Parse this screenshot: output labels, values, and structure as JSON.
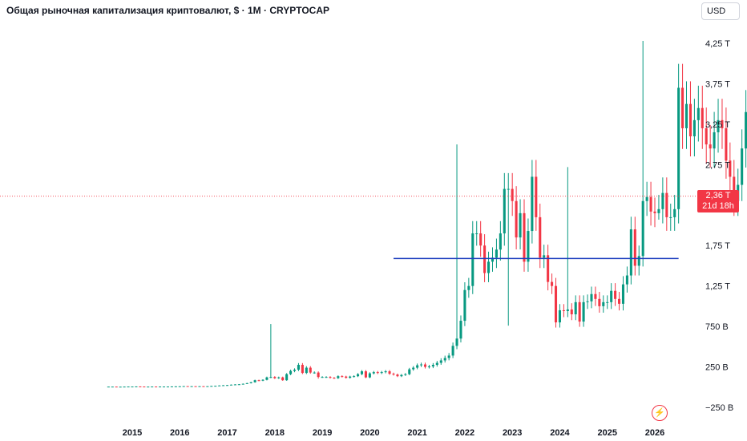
{
  "header": {
    "title": "Общая рыночная капитализация криптовалют, $ · 1M · CRYPTOCAP",
    "currency": "USD"
  },
  "price_label": {
    "value": "2,36 T",
    "countdown": "21d 18h"
  },
  "colors": {
    "up": "#089981",
    "down": "#f23645",
    "hline": "#1e3fbf",
    "grid": "#f0f3fa"
  },
  "icons": {
    "alerts": "lightning-icon"
  },
  "chart_data": {
    "type": "candlestick",
    "title": "Общая рыночная капитализация криптовалют, $ · 1M · CRYPTOCAP",
    "y_ticks": [
      {
        "value": 4250,
        "label": "4,25 T"
      },
      {
        "value": 3750,
        "label": "3,75 T"
      },
      {
        "value": 3250,
        "label": "3,25 T"
      },
      {
        "value": 2750,
        "label": "2,75 T"
      },
      {
        "value": 1750,
        "label": "1,75 T"
      },
      {
        "value": 1250,
        "label": "1,25 T"
      },
      {
        "value": 750,
        "label": "750 B"
      },
      {
        "value": 250,
        "label": "250 B"
      },
      {
        "value": -250,
        "label": "−250 B"
      }
    ],
    "x_ticks": [
      {
        "t": 2015,
        "label": "2015"
      },
      {
        "t": 2016,
        "label": "2016"
      },
      {
        "t": 2017,
        "label": "2017"
      },
      {
        "t": 2018,
        "label": "2018"
      },
      {
        "t": 2019,
        "label": "2019"
      },
      {
        "t": 2020,
        "label": "2020"
      },
      {
        "t": 2021,
        "label": "2021"
      },
      {
        "t": 2022,
        "label": "2022"
      },
      {
        "t": 2023,
        "label": "2023"
      },
      {
        "t": 2024,
        "label": "2024"
      },
      {
        "t": 2025,
        "label": "2025"
      },
      {
        "t": 2026,
        "label": "2026"
      }
    ],
    "y_range_billions": [
      -300,
      4600
    ],
    "x_range_years": [
      2013.0,
      2026.7
    ],
    "current_price_billions": 2360,
    "horizontal_line": {
      "value_billions": 1590,
      "from": 2020.5,
      "to": 2026.5
    },
    "close_billions": [
      6,
      6,
      5,
      5,
      6,
      7,
      7,
      8,
      7,
      6,
      6,
      7,
      6,
      7,
      7,
      7,
      8,
      9,
      10,
      12,
      10,
      11,
      10,
      11,
      10,
      11,
      14,
      16,
      20,
      23,
      25,
      30,
      33,
      35,
      41,
      49,
      60,
      85,
      80,
      90,
      120,
      125,
      110,
      120,
      85,
      160,
      200,
      215,
      275,
      175,
      240,
      180,
      180,
      125,
      125,
      125,
      115,
      110,
      135,
      130,
      115,
      130,
      135,
      160,
      195,
      120,
      170,
      185,
      175,
      185,
      195,
      165,
      155,
      135,
      150,
      160,
      220,
      240,
      270,
      280,
      250,
      255,
      275,
      300,
      330,
      360,
      390,
      510,
      600,
      820,
      1200,
      1250,
      1900,
      1900,
      1750,
      1410,
      1550,
      1600,
      1700,
      1900,
      2450,
      2450,
      2300,
      1850,
      2150,
      1550,
      1930,
      2600,
      2100,
      1600,
      1630,
      1300,
      1250,
      800,
      950,
      940,
      960,
      900,
      1050,
      810,
      1050,
      1060,
      1150,
      1090,
      1000,
      1050,
      1050,
      1190,
      1090,
      1030,
      1270,
      1380,
      1950,
      1500,
      1620,
      2300,
      2350,
      2170,
      2150,
      2200,
      2400,
      2100,
      2100,
      2200,
      3700,
      3200,
      3500,
      3100,
      3300,
      3450,
      3200,
      3000,
      2950,
      3150,
      3300,
      3200,
      2800,
      2600,
      2300,
      2500,
      2950,
      3400,
      3750,
      3750,
      3800,
      3750,
      3550,
      3050,
      3050,
      2700,
      2350
    ],
    "highs_billions": {
      "2017.92": 780,
      "2021.83": 3000,
      "2025.75": 4280,
      "2024.17": 2720
    },
    "lows_billions": {
      "2022.92": 760,
      "2026.08": 2070,
      "2018.92": 105
    }
  }
}
